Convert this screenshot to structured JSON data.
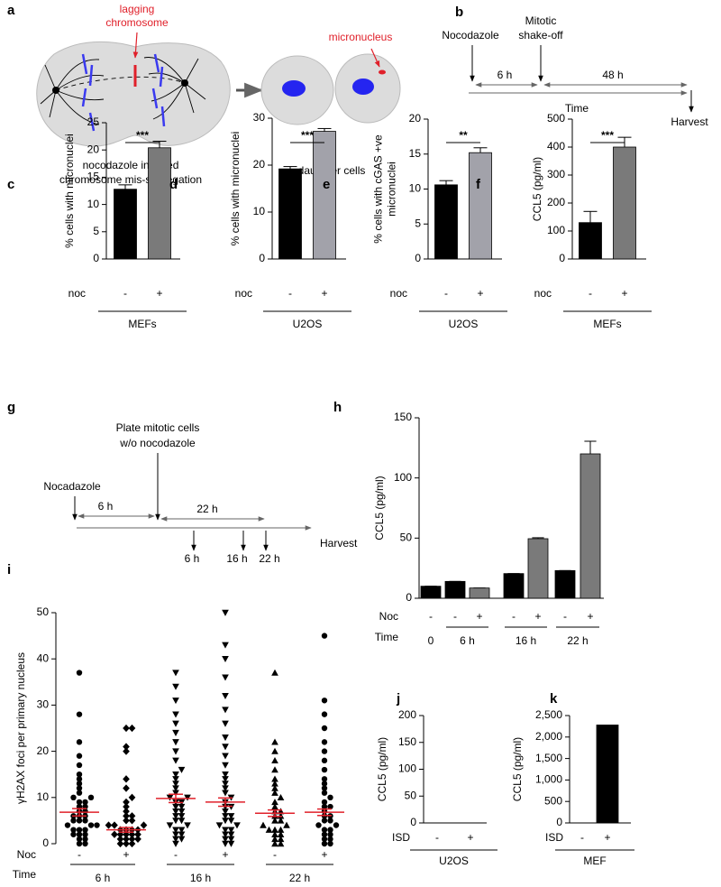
{
  "panel_a": {
    "letter": "a",
    "lagging": [
      "lagging",
      "chromosome"
    ],
    "micronucleus": "micronucleus",
    "caption": [
      "nocodazole induced",
      "chromosome mis-segregation"
    ],
    "daughter": "daughter cells"
  },
  "panel_b": {
    "letter": "b",
    "nocodazole": "Nocodazole",
    "shakeoff": [
      "Mitotic",
      "shake-off"
    ],
    "first": "6 h",
    "second": "48 h",
    "time": "Time",
    "harvest": "Harvest"
  },
  "panel_g": {
    "letter": "g",
    "plate": [
      "Plate mitotic cells",
      "w/o nocodazole"
    ],
    "nocodazole": "Nocadazole",
    "first": "6 h",
    "second": "22 h",
    "points": [
      "6 h",
      "16 h",
      "22 h"
    ],
    "harvest": "Harvest"
  },
  "chart_data": [
    {
      "letter": "c",
      "type": "bar",
      "ylabel": [
        "% cells with micronuclei"
      ],
      "categories": [
        "-",
        "+"
      ],
      "values": [
        12.8,
        20.4
      ],
      "errors": [
        0.8,
        1.2
      ],
      "colors": [
        "#000000",
        "#7a7a7a"
      ],
      "ylim": [
        0,
        25
      ],
      "yticks": [
        0,
        5,
        10,
        15,
        20,
        25
      ],
      "row_labels": [
        "noc"
      ],
      "group_labels": [
        "MEFs"
      ],
      "significance": "***"
    },
    {
      "letter": "d",
      "type": "bar",
      "ylabel": [
        "% cells with micronuclei"
      ],
      "categories": [
        "-",
        "+"
      ],
      "values": [
        19.2,
        27.2
      ],
      "errors": [
        0.5,
        0.6
      ],
      "colors": [
        "#000000",
        "#a2a2aa"
      ],
      "ylim": [
        0,
        30
      ],
      "yticks": [
        0,
        10,
        20,
        30
      ],
      "row_labels": [
        "noc"
      ],
      "group_labels": [
        "U2OS"
      ],
      "significance": "***"
    },
    {
      "letter": "e",
      "type": "bar",
      "ylabel": [
        "% cells with cGAS +ve",
        "micronuclei"
      ],
      "categories": [
        "-",
        "+"
      ],
      "values": [
        10.6,
        15.2
      ],
      "errors": [
        0.6,
        0.7
      ],
      "colors": [
        "#000000",
        "#a2a2aa"
      ],
      "ylim": [
        0,
        20
      ],
      "yticks": [
        0,
        5,
        10,
        15,
        20
      ],
      "row_labels": [
        "noc"
      ],
      "group_labels": [
        "U2OS"
      ],
      "significance": "**"
    },
    {
      "letter": "f",
      "type": "bar",
      "ylabel": [
        "CCL5 (pg/ml)"
      ],
      "categories": [
        "-",
        "+"
      ],
      "values": [
        130,
        400
      ],
      "errors": [
        40,
        35
      ],
      "colors": [
        "#000000",
        "#7a7a7a"
      ],
      "ylim": [
        0,
        500
      ],
      "yticks": [
        0,
        100,
        200,
        300,
        400,
        500
      ],
      "row_labels": [
        "noc"
      ],
      "group_labels": [
        "MEFs"
      ],
      "significance": "***"
    },
    {
      "letter": "h",
      "type": "bar",
      "ylabel": [
        "CCL5 (pg/ml)"
      ],
      "categories": [
        "-",
        "-",
        "+",
        "-",
        "+",
        "-",
        "+"
      ],
      "values": [
        10,
        14,
        8.5,
        20.5,
        49.5,
        23,
        120
      ],
      "errors": [
        0,
        0,
        0,
        0,
        0.8,
        0,
        10.5
      ],
      "colors": [
        "#000000",
        "#000000",
        "#7a7a7a",
        "#000000",
        "#7a7a7a",
        "#000000",
        "#7a7a7a"
      ],
      "ylim": [
        0,
        150
      ],
      "yticks": [
        0,
        50,
        100,
        150
      ],
      "row_labels": [
        "Noc",
        "Time"
      ],
      "group_labels": [
        "0",
        "6 h",
        "16 h",
        "22 h"
      ]
    },
    {
      "letter": "i",
      "type": "scatter",
      "ylabel": [
        "γH2AX foci per primary nucleus"
      ],
      "categories": [
        "-",
        "+",
        "-",
        "+",
        "-",
        "+"
      ],
      "row_labels": [
        "Noc",
        "Time"
      ],
      "group_labels": [
        "6 h",
        "16 h",
        "22 h"
      ],
      "ylim": [
        0,
        50
      ],
      "yticks": [
        0,
        10,
        20,
        30,
        40,
        50
      ],
      "color": "#000000",
      "mean_color": "#e0202a",
      "groups": [
        {
          "marker": "circle",
          "mean": 6.8,
          "sem": 0.8,
          "values": [
            0,
            0,
            1,
            1,
            2,
            2,
            2,
            3,
            3,
            3,
            4,
            4,
            4,
            5,
            5,
            5,
            6,
            6,
            6,
            7,
            7,
            8,
            8,
            9,
            9,
            10,
            10,
            11,
            12,
            13,
            14,
            15,
            17,
            19,
            22,
            28,
            37
          ]
        },
        {
          "marker": "diamond",
          "mean": 3.0,
          "sem": 0.5,
          "values": [
            0,
            0,
            0,
            1,
            1,
            1,
            1,
            2,
            2,
            2,
            2,
            2,
            3,
            3,
            3,
            3,
            4,
            4,
            4,
            5,
            5,
            6,
            6,
            7,
            8,
            9,
            10,
            12,
            14,
            20,
            21,
            25,
            25
          ]
        },
        {
          "marker": "triangle-down",
          "mean": 9.8,
          "sem": 0.9,
          "values": [
            0,
            1,
            1,
            2,
            2,
            3,
            3,
            4,
            4,
            5,
            5,
            6,
            6,
            7,
            7,
            8,
            8,
            9,
            9,
            10,
            10,
            11,
            12,
            13,
            14,
            15,
            16,
            18,
            20,
            22,
            24,
            26,
            28,
            31,
            34,
            37
          ]
        },
        {
          "marker": "triangle-down",
          "mean": 9.0,
          "sem": 0.9,
          "values": [
            0,
            0,
            1,
            1,
            2,
            2,
            3,
            3,
            4,
            4,
            5,
            5,
            6,
            6,
            7,
            8,
            8,
            9,
            10,
            11,
            12,
            13,
            14,
            15,
            17,
            19,
            21,
            23,
            26,
            29,
            32,
            36,
            40,
            43,
            50
          ]
        },
        {
          "marker": "triangle-up",
          "mean": 6.6,
          "sem": 0.7,
          "values": [
            0,
            0,
            1,
            1,
            2,
            2,
            3,
            3,
            3,
            4,
            4,
            5,
            5,
            6,
            6,
            7,
            7,
            8,
            9,
            10,
            11,
            12,
            13,
            14,
            16,
            18,
            20,
            22,
            37
          ]
        },
        {
          "marker": "circle",
          "mean": 6.8,
          "sem": 0.7,
          "values": [
            0,
            0,
            1,
            1,
            2,
            2,
            3,
            3,
            4,
            4,
            5,
            5,
            6,
            6,
            7,
            8,
            8,
            9,
            10,
            11,
            12,
            13,
            14,
            16,
            18,
            20,
            22,
            25,
            28,
            31,
            45
          ]
        }
      ]
    },
    {
      "letter": "j",
      "type": "bar",
      "ylabel": [
        "CCL5 (pg/ml)"
      ],
      "categories": [
        "-",
        "+"
      ],
      "values": [
        0,
        0
      ],
      "colors": [
        "#000000",
        "#000000"
      ],
      "ylim": [
        0,
        200
      ],
      "yticks": [
        0,
        50,
        100,
        150,
        200
      ],
      "row_labels": [
        "ISD"
      ],
      "group_labels": [
        "U2OS"
      ]
    },
    {
      "letter": "k",
      "type": "bar",
      "ylabel": [
        "CCL5 (pg/ml)"
      ],
      "categories": [
        "-",
        "+"
      ],
      "values": [
        0,
        2280
      ],
      "colors": [
        "#000000",
        "#000000"
      ],
      "ylim": [
        0,
        2500
      ],
      "yticks": [
        0,
        500,
        {
          "value": 1000,
          "label": "1,000"
        },
        {
          "value": 1500,
          "label": "1,500"
        },
        {
          "value": 2000,
          "label": "2,000"
        },
        {
          "value": 2500,
          "label": "2,500"
        }
      ],
      "row_labels": [
        "ISD"
      ],
      "group_labels": [
        "MEF"
      ]
    }
  ]
}
